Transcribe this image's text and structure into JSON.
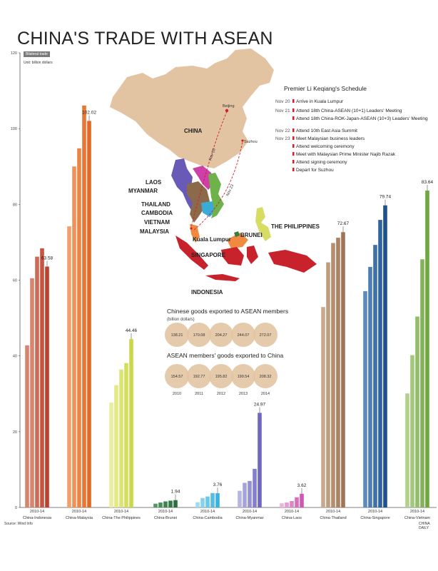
{
  "title": "CHINA'S TRADE WITH ASEAN",
  "badge": "Bilateral trade",
  "unit": "Unit: billion dollars",
  "source": "Source: Wind Info",
  "credit": "CHINA DAILY",
  "schedule": {
    "title": "Premier Li Keqiang's Schedule",
    "entries": [
      {
        "date": "Nov 20",
        "text": "Arrive in Kuala Lumpur"
      },
      {
        "date": "Nov 21",
        "text": "Attend 18th China-ASEAN (10+1) Leaders' Meeting"
      },
      {
        "date": "",
        "text": "Attend 18th China-ROK-Japan-ASEAN (10+3) Leaders' Meeting"
      },
      {
        "date": "Nov 22",
        "text": "Attend 10th East Asia Summit"
      },
      {
        "date": "Nov 23",
        "text": "Meet Malaysian business leaders"
      },
      {
        "date": "",
        "text": "Attend welcoming ceremony"
      },
      {
        "date": "",
        "text": "Meet with Malaysian Prime Minister Najib Razak"
      },
      {
        "date": "",
        "text": "Attend signing ceremony"
      },
      {
        "date": "",
        "text": "Depart for Suzhou"
      }
    ]
  },
  "map": {
    "labels": [
      "CHINA",
      "LAOS",
      "MYANMAR",
      "THAILAND",
      "CAMBODIA",
      "VIETNAM",
      "MALAYSIA",
      "Kuala Lumpur",
      "SINGAPORE",
      "BRUNEI",
      "THE PHILIPPINES",
      "INDONESIA"
    ],
    "cities": [
      "Beijing",
      "Suzhou"
    ],
    "routes": [
      "Nov 20",
      "Nov 23"
    ],
    "land_color": "#e2c4a3",
    "route_color": "#d0202a"
  },
  "exports": {
    "title": "Chinese goods exported to ASEAN members",
    "subtitle": "(billion dollars)",
    "values": [
      "138.21",
      "170.08",
      "204.27",
      "244.07",
      "272.07"
    ]
  },
  "imports": {
    "title": "ASEAN members'  goods exported to China",
    "values": [
      "154.57",
      "192.77",
      "195.82",
      "199.54",
      "208.32"
    ]
  },
  "years": [
    "2010",
    "2011",
    "2012",
    "2013",
    "2014"
  ],
  "chart_data": {
    "type": "bar",
    "title": "CHINA'S TRADE WITH ASEAN",
    "ylabel": "Unit: billion dollars",
    "ylim": [
      0,
      120
    ],
    "yticks": [
      0,
      20,
      40,
      60,
      80,
      100,
      120
    ],
    "bar_years": "2010-14",
    "grid": false,
    "groups": [
      {
        "name": "China-Indonesia",
        "values": [
          42.8,
          60.5,
          66.2,
          68.4,
          63.58
        ],
        "label": "63.58",
        "colors": [
          "#d9846e",
          "#d9846e",
          "#d06a55",
          "#c75440",
          "#bd3f2c"
        ]
      },
      {
        "name": "China-Malaysia",
        "values": [
          74.2,
          90.0,
          94.8,
          106.1,
          102.02
        ],
        "label": "102.02",
        "colors": [
          "#f2a06a",
          "#ef9257",
          "#ec8445",
          "#e97632",
          "#e06a24"
        ]
      },
      {
        "name": "China-The Philippines",
        "values": [
          27.7,
          32.3,
          36.4,
          38.1,
          44.46
        ],
        "label": "44.46",
        "colors": [
          "#e9ef9c",
          "#e2ea86",
          "#dbe571",
          "#d3df5c",
          "#cad84a"
        ]
      },
      {
        "name": "China-Brunei",
        "values": [
          1.0,
          1.3,
          1.6,
          1.8,
          1.94
        ],
        "label": "1.94",
        "colors": [
          "#4e9a62",
          "#459058",
          "#3c864f",
          "#337c45",
          "#2a723c"
        ]
      },
      {
        "name": "China-Cambodia",
        "values": [
          1.4,
          2.5,
          2.9,
          3.8,
          3.76
        ],
        "label": "3.76",
        "colors": [
          "#9fdcef",
          "#86d2ec",
          "#6dc8e8",
          "#54bde4",
          "#3ab2df"
        ]
      },
      {
        "name": "China-Myanmar",
        "values": [
          4.4,
          6.5,
          7.0,
          10.2,
          24.97
        ],
        "label": "24.97",
        "colors": [
          "#b7b5e3",
          "#a6a3dc",
          "#9591d4",
          "#847fcd",
          "#6f68c2"
        ]
      },
      {
        "name": "China-Laos",
        "values": [
          1.1,
          1.3,
          1.7,
          2.7,
          3.62
        ],
        "label": "3.62",
        "colors": [
          "#eeb0dd",
          "#e79ad3",
          "#e084c8",
          "#d86ebd",
          "#cf57b1"
        ]
      },
      {
        "name": "China-Thailand",
        "values": [
          52.9,
          64.7,
          69.8,
          71.2,
          72.67
        ],
        "label": "72.67",
        "colors": [
          "#c9a98c",
          "#bf9c7e",
          "#b58f70",
          "#ab8262",
          "#a07555"
        ]
      },
      {
        "name": "China-Singapore",
        "values": [
          57.1,
          63.5,
          69.3,
          75.9,
          79.74
        ],
        "label": "79.74",
        "colors": [
          "#5c8bbd",
          "#4d7eb3",
          "#3e71a9",
          "#2f649f",
          "#1f5190"
        ]
      },
      {
        "name": "China-Vietnam",
        "values": [
          30.1,
          40.2,
          50.4,
          65.5,
          83.64
        ],
        "label": "83.64",
        "colors": [
          "#b2d18c",
          "#a3c77b",
          "#94bd6a",
          "#85b359",
          "#6fa740"
        ]
      }
    ]
  }
}
